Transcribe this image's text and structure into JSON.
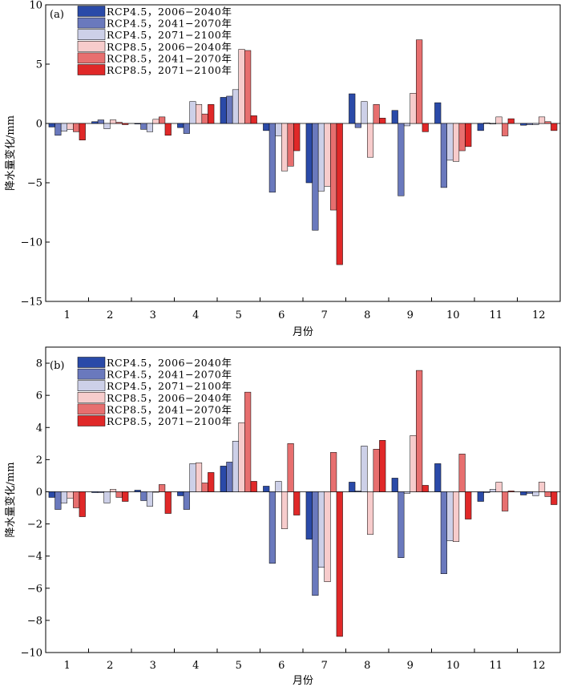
{
  "chart_data": [
    {
      "type": "bar",
      "panel_label": "(a)",
      "xlabel": "月份",
      "ylabel": "降水量变化/mm",
      "ylim": [
        -15,
        10
      ],
      "yticks": [
        10,
        5,
        0,
        -5,
        -10,
        -15
      ],
      "ytick_labels": [
        "10",
        "5",
        "0",
        "−5",
        "−10",
        "−15"
      ],
      "categories": [
        "1",
        "2",
        "3",
        "4",
        "5",
        "6",
        "7",
        "8",
        "9",
        "10",
        "11",
        "12"
      ],
      "legend_position": "top-left",
      "series": [
        {
          "name": "RCP4.5，2006−2040年",
          "color": "#2a4aa8",
          "values": [
            -0.3,
            0.15,
            -0.05,
            -0.35,
            2.2,
            -0.6,
            -5.0,
            2.5,
            1.1,
            1.75,
            -0.6,
            -0.15
          ]
        },
        {
          "name": "RCP4.5，2041−2070年",
          "color": "#6a79bd",
          "values": [
            -1.0,
            0.3,
            -0.5,
            -0.85,
            2.3,
            -5.8,
            -9.0,
            -0.35,
            -6.1,
            -5.4,
            0.05,
            -0.1
          ]
        },
        {
          "name": "RCP4.5，2071−2100年",
          "color": "#cdd0e8",
          "values": [
            -0.65,
            -0.45,
            -0.7,
            1.85,
            2.85,
            -1.05,
            -5.7,
            1.85,
            -0.2,
            -3.1,
            -0.05,
            -0.1
          ]
        },
        {
          "name": "RCP8.5，2006−2040年",
          "color": "#f7cccc",
          "values": [
            -0.5,
            0.3,
            0.35,
            1.6,
            6.25,
            -4.0,
            -5.3,
            -2.85,
            2.55,
            -3.2,
            0.55,
            0.55
          ]
        },
        {
          "name": "RCP8.5，2041−2070年",
          "color": "#e76f6f",
          "values": [
            -0.7,
            0.1,
            0.55,
            0.8,
            6.15,
            -3.6,
            -7.3,
            1.6,
            7.05,
            -2.3,
            -1.05,
            0.15
          ]
        },
        {
          "name": "RCP8.5，2071−2100年",
          "color": "#e02828",
          "values": [
            -1.4,
            -0.1,
            -1.0,
            1.6,
            0.65,
            -2.3,
            -11.9,
            0.45,
            -0.7,
            -1.95,
            0.4,
            -0.6
          ]
        }
      ]
    },
    {
      "type": "bar",
      "panel_label": "(b)",
      "xlabel": "月份",
      "ylabel": "降水量变化/mm",
      "ylim": [
        -10,
        9
      ],
      "yticks": [
        8,
        6,
        4,
        2,
        0,
        -2,
        -4,
        -6,
        -8,
        -10
      ],
      "ytick_labels": [
        "8",
        "6",
        "4",
        "2",
        "0",
        "−2",
        "−4",
        "−6",
        "−8",
        "−10"
      ],
      "categories": [
        "1",
        "2",
        "3",
        "4",
        "5",
        "6",
        "7",
        "8",
        "9",
        "10",
        "11",
        "12"
      ],
      "legend_position": "top-left",
      "series": [
        {
          "name": "RCP4.5，2006−2040年",
          "color": "#2a4aa8",
          "values": [
            -0.35,
            -0.05,
            0.1,
            -0.25,
            1.6,
            0.35,
            -2.95,
            0.6,
            0.85,
            1.75,
            -0.6,
            -0.2
          ]
        },
        {
          "name": "RCP4.5，2041−2070年",
          "color": "#6a79bd",
          "values": [
            -1.1,
            -0.05,
            -0.55,
            -1.1,
            1.85,
            -4.45,
            -6.45,
            0.05,
            -4.1,
            -5.1,
            -0.05,
            -0.1
          ]
        },
        {
          "name": "RCP4.5，2071−2100年",
          "color": "#cdd0e8",
          "values": [
            -0.7,
            -0.7,
            -0.9,
            1.75,
            3.15,
            0.65,
            -4.7,
            2.85,
            -0.1,
            -3.05,
            0.15,
            -0.25
          ]
        },
        {
          "name": "RCP8.5，2006−2040年",
          "color": "#f7cccc",
          "values": [
            -0.4,
            0.15,
            0.0,
            1.8,
            4.3,
            -2.3,
            -5.6,
            -2.65,
            3.5,
            -3.1,
            0.6,
            0.6
          ]
        },
        {
          "name": "RCP8.5，2041−2070年",
          "color": "#e76f6f",
          "values": [
            -1.0,
            -0.35,
            0.45,
            0.55,
            6.2,
            3.0,
            2.45,
            2.65,
            7.55,
            2.35,
            -1.2,
            -0.3
          ]
        },
        {
          "name": "RCP8.5，2071−2100年",
          "color": "#e02828",
          "values": [
            -1.55,
            -0.6,
            -1.35,
            1.2,
            0.65,
            -1.45,
            -9.0,
            3.2,
            0.4,
            -1.7,
            0.05,
            -0.8
          ]
        }
      ]
    }
  ]
}
